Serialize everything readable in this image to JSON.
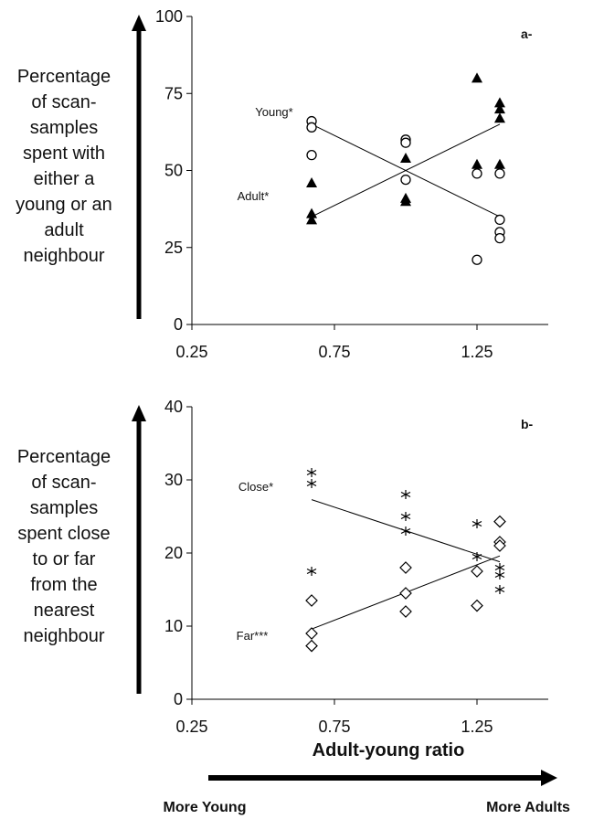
{
  "chart_data": [
    {
      "type": "scatter",
      "panel_tag": "a-",
      "ylabel": "Percentage\nof scan-\nsamples\nspent with\neither a\nyoung or an\nadult\nneighbour",
      "xlim": [
        0.25,
        1.5
      ],
      "ylim": [
        0,
        100
      ],
      "xticks": [
        "0.25",
        "0.75",
        "1.25"
      ],
      "yticks": [
        "0",
        "25",
        "50",
        "75",
        "100"
      ],
      "grid": false,
      "series": [
        {
          "name": "Young*",
          "marker": "open-circle",
          "x": [
            0.67,
            0.67,
            0.67,
            1.0,
            1.0,
            1.0,
            1.25,
            1.25,
            1.33,
            1.33,
            1.33,
            1.33
          ],
          "y": [
            66,
            64,
            55,
            60,
            59,
            47,
            49,
            21,
            49,
            34,
            30,
            28
          ],
          "trend": [
            [
              0.67,
              65
            ],
            [
              1.33,
              35
            ]
          ]
        },
        {
          "name": "Adult*",
          "marker": "filled-triangle",
          "x": [
            0.67,
            0.67,
            0.67,
            1.0,
            1.0,
            1.0,
            1.25,
            1.25,
            1.33,
            1.33,
            1.33,
            1.33
          ],
          "y": [
            46,
            36,
            34,
            54,
            41,
            40,
            80,
            52,
            72,
            70,
            67,
            52
          ],
          "trend": [
            [
              0.67,
              35
            ],
            [
              1.33,
              65
            ]
          ]
        }
      ]
    },
    {
      "type": "scatter",
      "panel_tag": "b-",
      "ylabel": "Percentage\nof scan-\nsamples\nspent close\nto or far\nfrom the\nnearest\nneighbour",
      "xlim": [
        0.25,
        1.5
      ],
      "ylim": [
        0,
        40
      ],
      "xticks": [
        "0.25",
        "0.75",
        "1.25"
      ],
      "yticks": [
        "0",
        "10",
        "20",
        "30",
        "40"
      ],
      "grid": false,
      "series": [
        {
          "name": "Close*",
          "marker": "asterisk",
          "x": [
            0.67,
            0.67,
            0.67,
            1.0,
            1.0,
            1.0,
            1.25,
            1.25,
            1.33,
            1.33,
            1.33
          ],
          "y": [
            31,
            29.5,
            17.5,
            28,
            25,
            23,
            24,
            19.5,
            18,
            17,
            15
          ],
          "trend": [
            [
              0.67,
              27.3
            ],
            [
              1.33,
              18.8
            ]
          ]
        },
        {
          "name": "Far***",
          "marker": "open-diamond",
          "x": [
            0.67,
            0.67,
            0.67,
            1.0,
            1.0,
            1.0,
            1.25,
            1.25,
            1.33,
            1.33,
            1.33
          ],
          "y": [
            13.5,
            9,
            7.3,
            18,
            14.5,
            12,
            17.5,
            12.8,
            24.3,
            21.5,
            21
          ],
          "trend": [
            [
              0.67,
              9.6
            ],
            [
              1.33,
              19.6
            ]
          ]
        }
      ]
    }
  ],
  "x_axis": {
    "title": "Adult-young ratio",
    "left_end": "More Young",
    "right_end": "More Adults"
  }
}
